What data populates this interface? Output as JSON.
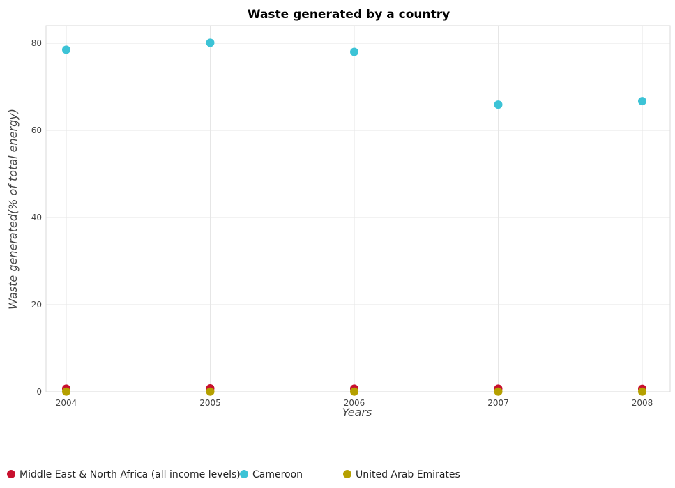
{
  "chart_data": {
    "type": "scatter",
    "title": "Waste generated by a country",
    "xlabel": "Years",
    "ylabel": "Waste generated(% of total energy)",
    "categories": [
      "2004",
      "2005",
      "2006",
      "2007",
      "2008"
    ],
    "ylim": [
      0,
      84
    ],
    "yticks": [
      0,
      20,
      40,
      60,
      80
    ],
    "grid": true,
    "legend_position": "bottom-left",
    "series": [
      {
        "name": "Middle East & North Africa (all income levels)",
        "color": "#c8102e",
        "values": [
          0.75,
          0.8,
          0.75,
          0.75,
          0.7
        ]
      },
      {
        "name": "Cameroon",
        "color": "#3cc3d6",
        "values": [
          78.5,
          80.1,
          78.0,
          65.9,
          66.7
        ]
      },
      {
        "name": "United Arab Emirates",
        "color": "#b5a000",
        "values": [
          0.05,
          0.05,
          0.05,
          0.05,
          0.05
        ]
      }
    ]
  }
}
